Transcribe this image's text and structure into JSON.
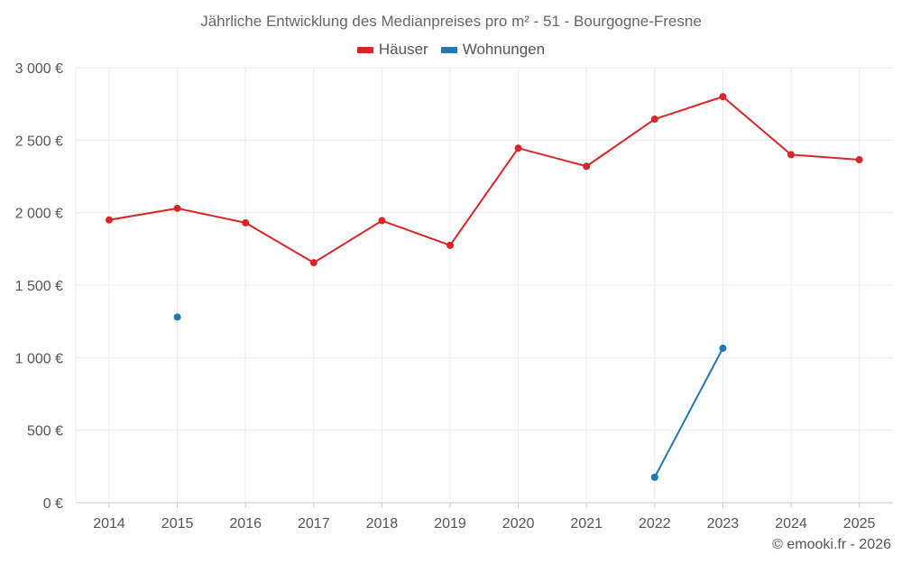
{
  "chart_data": {
    "type": "line",
    "title": "Jährliche Entwicklung des Medianpreises pro m² - 51 - Bourgogne-Fresne",
    "categories": [
      "2014",
      "2015",
      "2016",
      "2017",
      "2018",
      "2019",
      "2020",
      "2021",
      "2022",
      "2023",
      "2024",
      "2025"
    ],
    "series": [
      {
        "name": "Häuser",
        "color": "#d62728",
        "values": [
          1950,
          2030,
          1930,
          1655,
          1945,
          1775,
          2445,
          2320,
          2645,
          2800,
          2400,
          2365
        ]
      },
      {
        "name": "Wohnungen",
        "color": "#1f77b4",
        "values": [
          null,
          1280,
          null,
          null,
          null,
          null,
          null,
          null,
          175,
          1065,
          null,
          null
        ]
      }
    ],
    "y_ticks": [
      0,
      500,
      1000,
      1500,
      2000,
      2500,
      3000
    ],
    "y_tick_labels": [
      "0 €",
      "500 €",
      "1 000 €",
      "1 500 €",
      "2 000 €",
      "2 500 €",
      "3 000 €"
    ],
    "ylim": [
      0,
      3000
    ],
    "xlabel": "",
    "ylabel": "",
    "grid": true,
    "legend_position": "top-center"
  },
  "credit": "© emooki.fr - 2026"
}
